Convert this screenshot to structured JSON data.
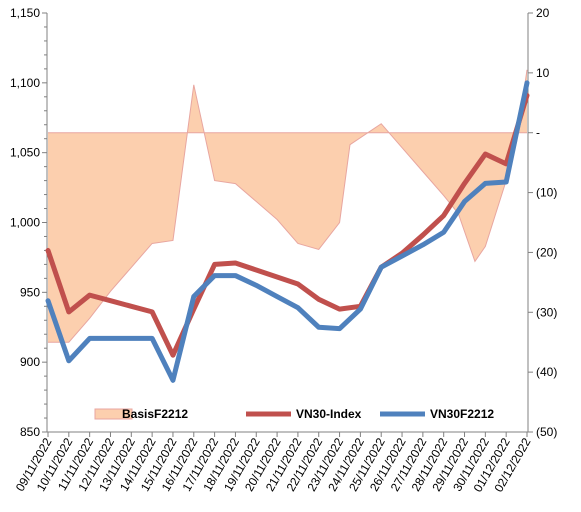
{
  "chart_data": {
    "type": "line",
    "categories": [
      "09/11/2022",
      "10/11/2022",
      "11/11/2022",
      "12/11/2022",
      "13/11/2022",
      "14/11/2022",
      "15/11/2022",
      "16/11/2022",
      "17/11/2022",
      "18/11/2022",
      "19/11/2022",
      "20/11/2022",
      "21/11/2022",
      "22/11/2022",
      "23/11/2022",
      "24/11/2022",
      "25/11/2022",
      "26/11/2022",
      "27/11/2022",
      "28/11/2022",
      "29/11/2022",
      "30/11/2022",
      "01/12/2022",
      "02/12/2022"
    ],
    "x_tick_labels": [
      "09/11/2022",
      "10/11/2022",
      "11/11/2022",
      "12/11/2022",
      "13/11/2022",
      "14/11/2022",
      "15/11/2022",
      "16/11/2022",
      "17/11/2022",
      "18/11/2022",
      "19/11/2022",
      "20/11/2022",
      "21/11/2022",
      "22/11/2022",
      "23/11/2022",
      "24/11/2022",
      "25/11/2022",
      "26/11/2022",
      "27/11/2022",
      "28/11/2022",
      "29/11/2022",
      "30/11/2022",
      "01/12/2022",
      "02/12/2022"
    ],
    "x_range": [
      0,
      23
    ],
    "y_left": {
      "range": [
        850,
        1150
      ],
      "ticks": [
        "850",
        "900",
        "950",
        "1,000",
        "1,050",
        "1,100",
        "1,150"
      ]
    },
    "y_right": {
      "range": [
        -50,
        20
      ],
      "ticks": [
        "(50)",
        "(40)",
        "(30)",
        "(20)",
        "(10)",
        "-",
        "10",
        "20"
      ]
    },
    "grid": false,
    "legend_position": "bottom",
    "series": [
      {
        "name": "BasisF2212",
        "kind": "area",
        "axis": "right",
        "color": "#FCCFAE",
        "edge_color": "#E8A6A0",
        "points": [
          [
            0,
            -35
          ],
          [
            1,
            -35
          ],
          [
            2,
            -31
          ],
          [
            3,
            -26.5
          ],
          [
            4,
            -22.5
          ],
          [
            5,
            -18.5
          ],
          [
            6,
            -18
          ],
          [
            7,
            8
          ],
          [
            8,
            -8
          ],
          [
            9,
            -8.5
          ],
          [
            10,
            -11.5
          ],
          [
            11,
            -14.5
          ],
          [
            12,
            -18.5
          ],
          [
            13,
            -19.5
          ],
          [
            14,
            -15
          ],
          [
            14.5,
            -2
          ],
          [
            16,
            1.5
          ],
          [
            17,
            -2.5
          ],
          [
            18,
            -6.5
          ],
          [
            19,
            -10.5
          ],
          [
            19.7,
            -13.5
          ],
          [
            20.5,
            -21.5
          ],
          [
            21,
            -19
          ],
          [
            21.5,
            -13.5
          ],
          [
            22,
            -8
          ],
          [
            22.5,
            -1.5
          ],
          [
            23,
            10.5
          ]
        ]
      },
      {
        "name": "VN30-Index",
        "kind": "line",
        "axis": "left",
        "color": "#C0504D",
        "points": [
          [
            0,
            980
          ],
          [
            1,
            936
          ],
          [
            2,
            948
          ],
          [
            3,
            944
          ],
          [
            4,
            940
          ],
          [
            5,
            936
          ],
          [
            6,
            905
          ],
          [
            7,
            938
          ],
          [
            8,
            970
          ],
          [
            9,
            971
          ],
          [
            10,
            966
          ],
          [
            11,
            961
          ],
          [
            12,
            956
          ],
          [
            13,
            945
          ],
          [
            14,
            938
          ],
          [
            15,
            940
          ],
          [
            16,
            968
          ],
          [
            17,
            978
          ],
          [
            18,
            991
          ],
          [
            19,
            1005
          ],
          [
            20,
            1028
          ],
          [
            21,
            1049
          ],
          [
            22,
            1042
          ],
          [
            23,
            1091
          ]
        ]
      },
      {
        "name": "VN30F2212",
        "kind": "line",
        "axis": "left",
        "color": "#4F81BD",
        "points": [
          [
            0,
            944
          ],
          [
            1,
            901
          ],
          [
            2,
            917
          ],
          [
            3,
            917
          ],
          [
            4,
            917
          ],
          [
            5,
            917
          ],
          [
            6,
            887
          ],
          [
            7,
            947
          ],
          [
            8,
            962
          ],
          [
            9,
            962
          ],
          [
            10,
            955
          ],
          [
            11,
            947
          ],
          [
            12,
            939
          ],
          [
            13,
            925
          ],
          [
            14,
            924
          ],
          [
            15,
            938
          ],
          [
            16,
            968
          ],
          [
            17,
            976
          ],
          [
            18,
            984
          ],
          [
            19,
            993
          ],
          [
            20,
            1015
          ],
          [
            21,
            1028
          ],
          [
            22,
            1029
          ],
          [
            23,
            1100
          ]
        ]
      }
    ]
  }
}
